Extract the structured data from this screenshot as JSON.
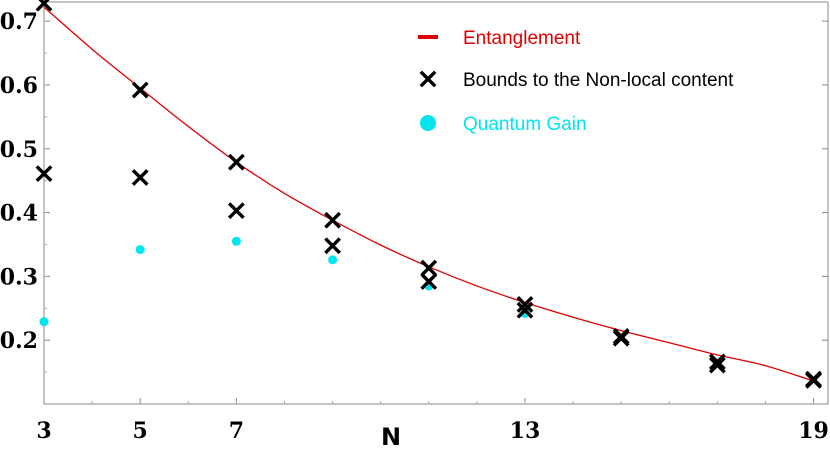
{
  "chart_data": {
    "type": "scatter",
    "xlabel": "N",
    "ylabel": "",
    "xlim": [
      3,
      19.3
    ],
    "ylim": [
      0.1,
      0.73
    ],
    "xticks": [
      "3",
      "5",
      "7",
      "13",
      "19"
    ],
    "yticks": [
      "0.2",
      "0.3",
      "0.4",
      "0.5",
      "0.6",
      "0.7"
    ],
    "grid": false,
    "legend_position": "top-right",
    "series": [
      {
        "name": "Entanglement",
        "kind": "line",
        "color": "#e00000",
        "x": [
          3,
          4,
          5,
          6,
          7,
          8,
          9,
          10,
          11,
          12,
          13,
          14,
          15,
          16,
          17,
          18,
          19
        ],
        "y": [
          0.722,
          0.656,
          0.595,
          0.535,
          0.479,
          0.43,
          0.388,
          0.349,
          0.315,
          0.285,
          0.259,
          0.236,
          0.215,
          0.196,
          0.177,
          0.16,
          0.136
        ]
      },
      {
        "name": "Bounds to the Non-local content",
        "kind": "marker-x",
        "color": "#000000",
        "x": [
          3,
          3,
          5,
          5,
          7,
          7,
          9,
          9,
          11,
          11,
          13,
          13,
          15,
          15,
          17,
          17,
          19,
          19
        ],
        "y": [
          0.728,
          0.461,
          0.592,
          0.455,
          0.479,
          0.403,
          0.388,
          0.348,
          0.313,
          0.292,
          0.256,
          0.247,
          0.206,
          0.203,
          0.166,
          0.161,
          0.139,
          0.137
        ]
      },
      {
        "name": "Quantum Gain",
        "kind": "marker-dot",
        "color": "#00e5ee",
        "x": [
          3,
          5,
          7,
          9,
          11,
          13
        ],
        "y": [
          0.229,
          0.342,
          0.355,
          0.326,
          0.285,
          0.242
        ]
      }
    ]
  }
}
